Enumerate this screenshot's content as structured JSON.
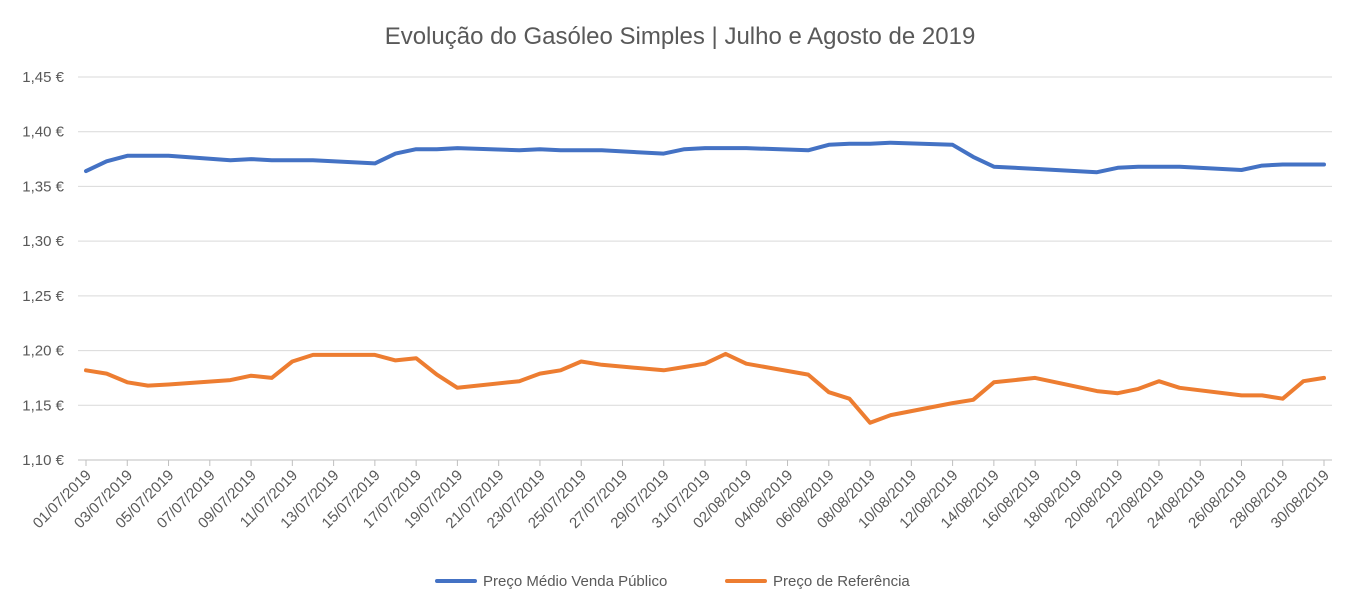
{
  "chart_data": {
    "type": "line",
    "title": "Evolução do Gasóleo Simples | Julho e Agosto de 2019",
    "xlabel": "",
    "ylabel": "",
    "ylim": [
      1.1,
      1.45
    ],
    "y_ticks": [
      "1,10 €",
      "1,15 €",
      "1,20 €",
      "1,25 €",
      "1,30 €",
      "1,35 €",
      "1,40 €",
      "1,45 €"
    ],
    "y_tick_values": [
      1.1,
      1.15,
      1.2,
      1.25,
      1.3,
      1.35,
      1.4,
      1.45
    ],
    "grid": true,
    "legend_position": "bottom",
    "x": [
      "01/07/2019",
      "02/07/2019",
      "03/07/2019",
      "04/07/2019",
      "05/07/2019",
      "08/07/2019",
      "09/07/2019",
      "10/07/2019",
      "11/07/2019",
      "12/07/2019",
      "15/07/2019",
      "16/07/2019",
      "17/07/2019",
      "18/07/2019",
      "19/07/2019",
      "22/07/2019",
      "23/07/2019",
      "24/07/2019",
      "25/07/2019",
      "26/07/2019",
      "29/07/2019",
      "30/07/2019",
      "31/07/2019",
      "01/08/2019",
      "02/08/2019",
      "05/08/2019",
      "06/08/2019",
      "07/08/2019",
      "08/08/2019",
      "09/08/2019",
      "12/08/2019",
      "13/08/2019",
      "14/08/2019",
      "16/08/2019",
      "19/08/2019",
      "20/08/2019",
      "21/08/2019",
      "22/08/2019",
      "23/08/2019",
      "26/08/2019",
      "27/08/2019",
      "28/08/2019",
      "29/08/2019",
      "30/08/2019"
    ],
    "x_tick_labels": [
      "01/07/2019",
      "03/07/2019",
      "05/07/2019",
      "07/07/2019",
      "09/07/2019",
      "11/07/2019",
      "13/07/2019",
      "15/07/2019",
      "17/07/2019",
      "19/07/2019",
      "21/07/2019",
      "23/07/2019",
      "25/07/2019",
      "27/07/2019",
      "29/07/2019",
      "31/07/2019",
      "02/08/2019",
      "04/08/2019",
      "06/08/2019",
      "08/08/2019",
      "10/08/2019",
      "12/08/2019",
      "14/08/2019",
      "16/08/2019",
      "18/08/2019",
      "20/08/2019",
      "22/08/2019",
      "24/08/2019",
      "26/08/2019",
      "28/08/2019",
      "30/08/2019"
    ],
    "series": [
      {
        "name": "Preço Médio Venda Público",
        "color": "#4472c4",
        "values": [
          1.364,
          1.373,
          1.378,
          1.378,
          1.378,
          1.374,
          1.375,
          1.374,
          1.374,
          1.374,
          1.371,
          1.38,
          1.384,
          1.384,
          1.385,
          1.383,
          1.384,
          1.383,
          1.383,
          1.383,
          1.38,
          1.384,
          1.385,
          1.385,
          1.385,
          1.383,
          1.388,
          1.389,
          1.389,
          1.39,
          1.388,
          1.377,
          1.368,
          1.366,
          1.363,
          1.367,
          1.368,
          1.368,
          1.368,
          1.365,
          1.369,
          1.37,
          1.37,
          1.37
        ]
      },
      {
        "name": "Preço de Referência",
        "color": "#ed7d31",
        "values": [
          1.182,
          1.179,
          1.171,
          1.168,
          1.169,
          1.173,
          1.177,
          1.175,
          1.19,
          1.196,
          1.196,
          1.191,
          1.193,
          1.178,
          1.166,
          1.172,
          1.179,
          1.182,
          1.19,
          1.187,
          1.182,
          1.185,
          1.188,
          1.197,
          1.188,
          1.178,
          1.162,
          1.156,
          1.134,
          1.141,
          1.152,
          1.155,
          1.171,
          1.175,
          1.163,
          1.161,
          1.165,
          1.172,
          1.166,
          1.159,
          1.159,
          1.156,
          1.172,
          1.175
        ]
      }
    ]
  }
}
